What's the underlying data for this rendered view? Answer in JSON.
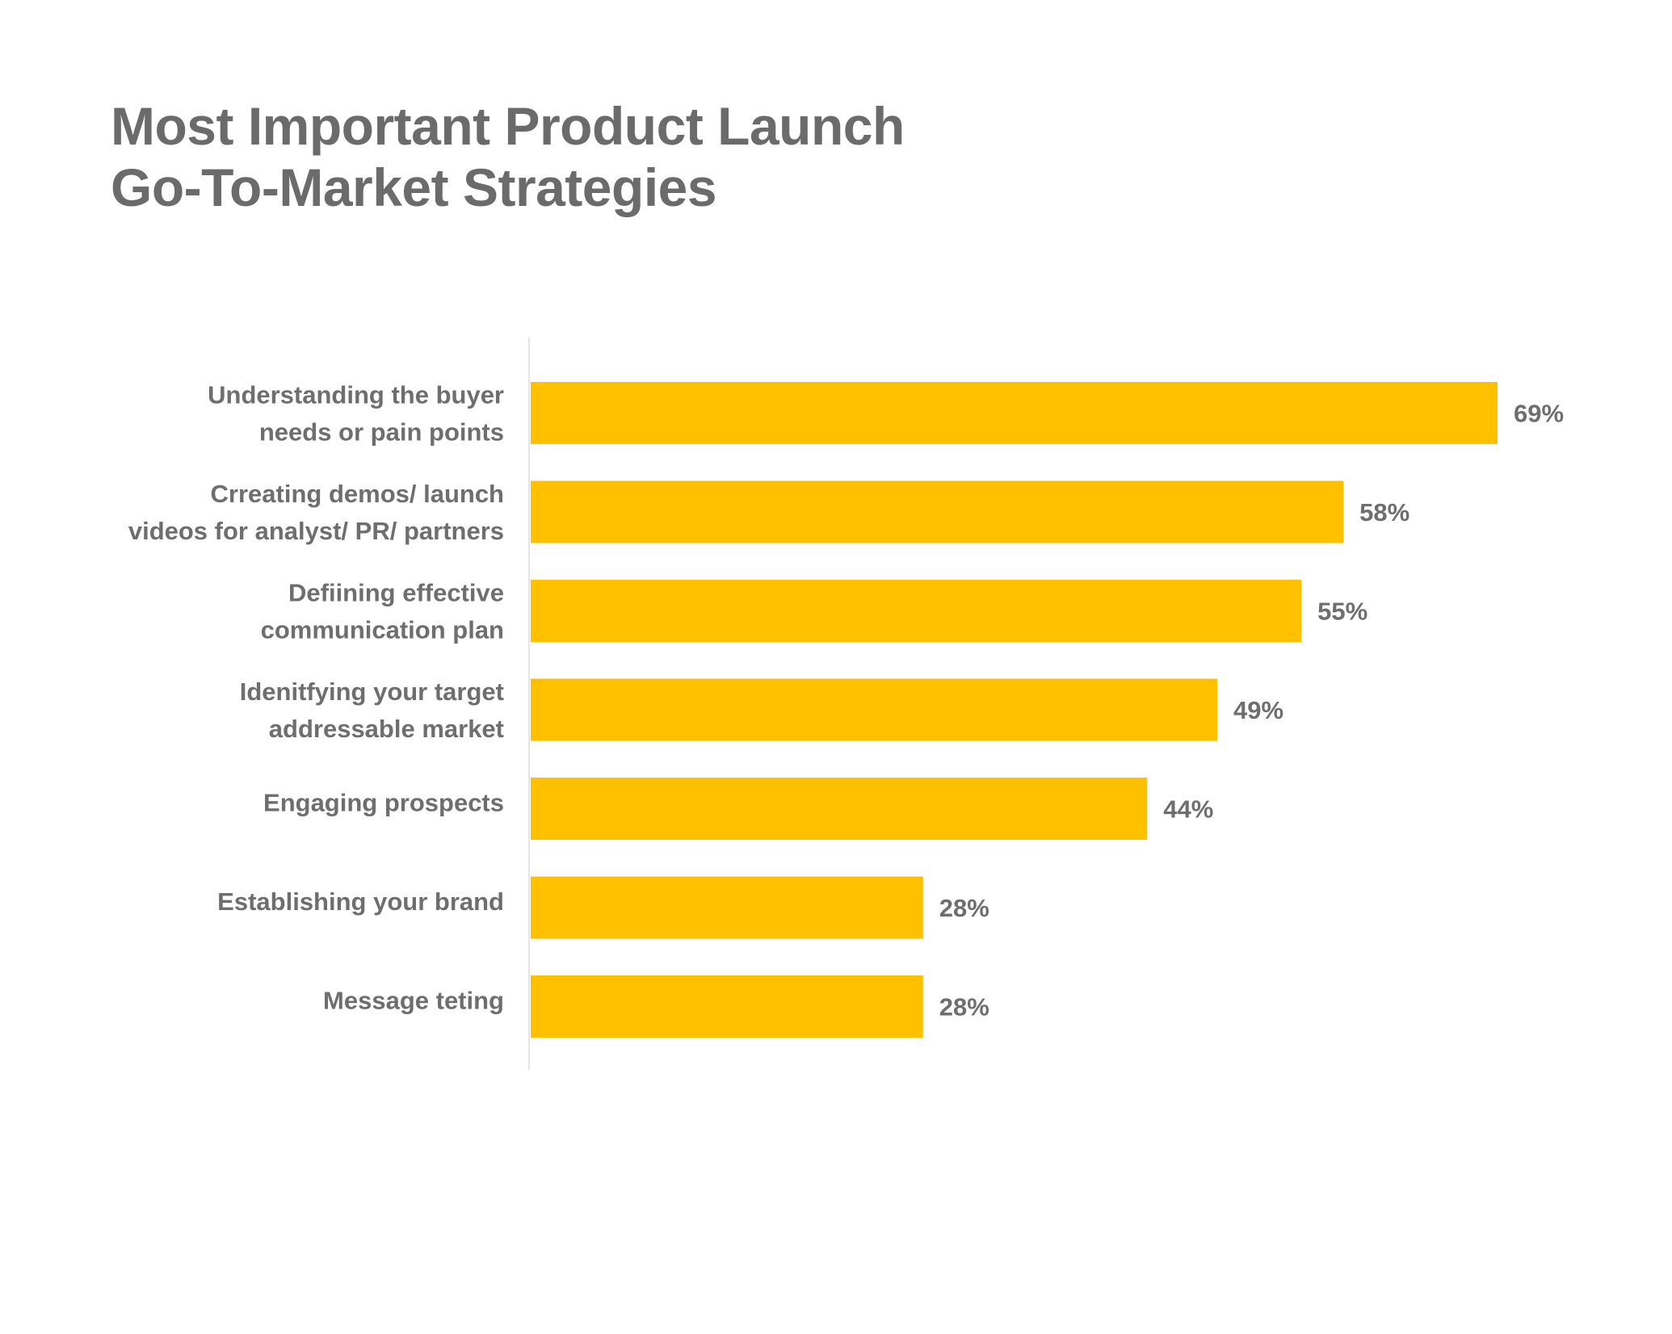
{
  "chart_data": {
    "type": "bar",
    "orientation": "horizontal",
    "title": [
      "Most Important Product Launch",
      "Go-To-Market Strategies"
    ],
    "categories": [
      [
        "Understanding the buyer",
        "needs or pain points"
      ],
      [
        "Crreating demos/ launch",
        "videos for analyst/ PR/ partners"
      ],
      [
        "Defiining effective",
        "communication plan"
      ],
      [
        "Idenitfying your target",
        "addressable market"
      ],
      [
        "Engaging prospects"
      ],
      [
        "Establishing your brand"
      ],
      [
        "Message teting"
      ]
    ],
    "values": [
      69,
      58,
      55,
      49,
      44,
      28,
      28
    ],
    "value_labels": [
      "69%",
      "58%",
      "55%",
      "49%",
      "44%",
      "28%",
      "28%"
    ],
    "xlabel": "",
    "ylabel": "",
    "xlim": [
      0,
      69
    ],
    "grid": false,
    "legend": "none",
    "colors": {
      "bar": "#FFC000",
      "text": "#6e6e6e",
      "title": "#6b6b6b",
      "axis": "#e3e3e3"
    }
  }
}
